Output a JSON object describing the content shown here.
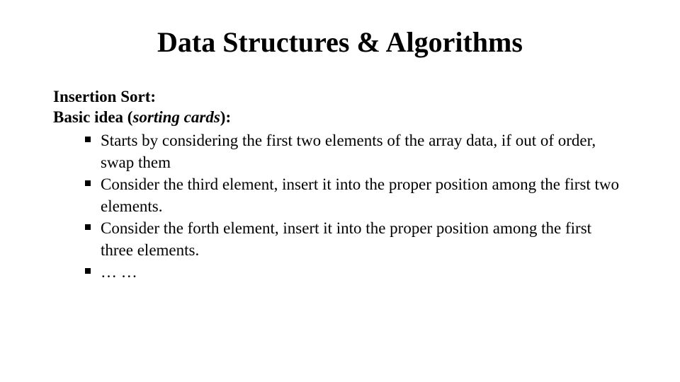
{
  "title": "Data Structures & Algorithms",
  "section_heading": "Insertion Sort:",
  "intro_prefix": "Basic idea (",
  "intro_italic": "sorting cards",
  "intro_suffix": "):",
  "bullets": [
    "Starts by considering the first two elements of the array data, if out of order, swap them",
    "Consider the third element, insert it into the proper  position among the first two elements.",
    "Consider the forth element, insert it into the proper position among the first three elements.",
    "… …"
  ],
  "colors": {
    "background": "#ffffff",
    "text": "#000000"
  },
  "typography": {
    "family": "Times New Roman",
    "title_size_pt": 30,
    "body_size_pt": 17,
    "bullet_marker": "filled-square"
  }
}
